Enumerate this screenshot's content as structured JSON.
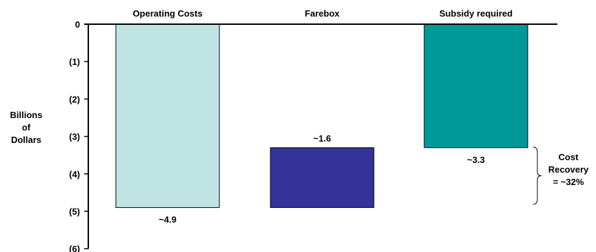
{
  "chart_data": {
    "type": "bar",
    "title": "",
    "xlabel": "",
    "ylabel": [
      "Billions",
      "of",
      "Dollars"
    ],
    "ylim": [
      -6,
      0
    ],
    "yticks": [
      {
        "value": 0,
        "label": "0"
      },
      {
        "value": -1,
        "label": "(1)"
      },
      {
        "value": -2,
        "label": "(2)"
      },
      {
        "value": -3,
        "label": "(3)"
      },
      {
        "value": -4,
        "label": "(4)"
      },
      {
        "value": -5,
        "label": "(5)"
      },
      {
        "value": -6,
        "label": "(6)"
      }
    ],
    "categories": [
      "Operating Costs",
      "Farebox",
      "Subsidy required"
    ],
    "bars": [
      {
        "category": "Operating Costs",
        "start": 0,
        "end": -4.9,
        "label": "~4.9",
        "color": "#c0e4e4"
      },
      {
        "category": "Farebox",
        "start": -3.3,
        "end": -4.9,
        "label": "~1.6",
        "color": "#333399"
      },
      {
        "category": "Subsidy required",
        "start": 0,
        "end": -3.3,
        "label": "~3.3",
        "color": "#009999"
      }
    ],
    "annotation": {
      "lines": [
        "Cost",
        "Recovery",
        "= ~32%"
      ]
    },
    "grid": false,
    "legend": "none"
  }
}
